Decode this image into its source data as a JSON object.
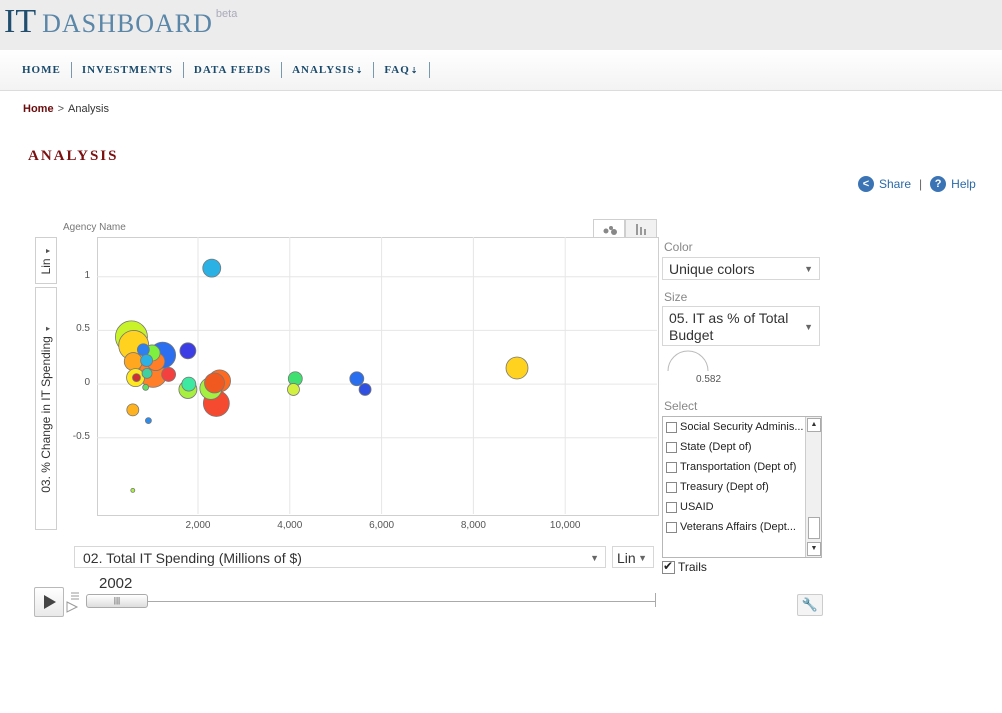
{
  "site": {
    "logo_it": "IT",
    "logo_dashboard": "DASHBOARD",
    "logo_beta": "beta"
  },
  "nav": [
    {
      "label": "HOME",
      "has_dropdown": false
    },
    {
      "label": "INVESTMENTS",
      "has_dropdown": false
    },
    {
      "label": "DATA FEEDS",
      "has_dropdown": false
    },
    {
      "label": "ANALYSIS",
      "has_dropdown": true
    },
    {
      "label": "FAQ",
      "has_dropdown": true
    }
  ],
  "breadcrumb": {
    "home": "Home",
    "separator": ">",
    "current": "Analysis"
  },
  "page_title": "ANALYSIS",
  "actions": {
    "share": "Share",
    "separator": "|",
    "help": "Help"
  },
  "chart": {
    "agency_label": "Agency Name",
    "y_scale": "Lin",
    "y_metric": "03. % Change in IT Spending",
    "x_metric": "02. Total IT Spending (Millions of $)",
    "x_scale": "Lin",
    "year": "2002"
  },
  "panel": {
    "color_label": "Color",
    "color_value": "Unique colors",
    "size_label": "Size",
    "size_value": "05. IT as % of Total Budget",
    "gauge_value": "0.582",
    "select_label": "Select",
    "select_items": [
      "Social Security Adminis...",
      "State (Dept of)",
      "Transportation (Dept of)",
      "Treasury (Dept of)",
      "USAID",
      "Veterans Affairs (Dept..."
    ],
    "trails_label": "Trails"
  },
  "chart_data": {
    "type": "scatter",
    "title": "",
    "xlabel": "02. Total IT Spending (Millions of $)",
    "ylabel": "03. % Change in IT Spending",
    "x_ticks": [
      "2,000",
      "4,000",
      "6,000",
      "8,000",
      "10,000"
    ],
    "y_ticks": [
      "1",
      "0.5",
      "0",
      "-0.5"
    ],
    "xlim": [
      0,
      12000
    ],
    "ylim": [
      -1.2,
      1.4
    ],
    "grid": true,
    "points": [
      {
        "x": 2300,
        "y": 1.08,
        "size": 9,
        "color": "#2bb1e3"
      },
      {
        "x": 8950,
        "y": 0.15,
        "size": 11,
        "color": "#ffd21f"
      },
      {
        "x": 550,
        "y": 0.44,
        "size": 16,
        "color": "#c8f22a"
      },
      {
        "x": 600,
        "y": 0.36,
        "size": 15,
        "color": "#ffd21f"
      },
      {
        "x": 1230,
        "y": 0.27,
        "size": 13,
        "color": "#2b6ff0"
      },
      {
        "x": 1780,
        "y": 0.31,
        "size": 8,
        "color": "#3d3de6"
      },
      {
        "x": 810,
        "y": 0.32,
        "size": 6,
        "color": "#2e7ff0"
      },
      {
        "x": 1000,
        "y": 0.29,
        "size": 8,
        "color": "#7df040"
      },
      {
        "x": 590,
        "y": 0.21,
        "size": 9,
        "color": "#ffa81f"
      },
      {
        "x": 880,
        "y": 0.22,
        "size": 6,
        "color": "#2bb1e3"
      },
      {
        "x": 1080,
        "y": 0.21,
        "size": 9,
        "color": "#ff7e27"
      },
      {
        "x": 1020,
        "y": 0.1,
        "size": 14,
        "color": "#ff7e27"
      },
      {
        "x": 1360,
        "y": 0.09,
        "size": 7,
        "color": "#f54040"
      },
      {
        "x": 640,
        "y": 0.06,
        "size": 9,
        "color": "#ffe81f"
      },
      {
        "x": 660,
        "y": 0.06,
        "size": 4,
        "color": "#d03030"
      },
      {
        "x": 890,
        "y": 0.1,
        "size": 5,
        "color": "#40d0a0"
      },
      {
        "x": 860,
        "y": -0.03,
        "size": 3,
        "color": "#60e060"
      },
      {
        "x": 1800,
        "y": 0.0,
        "size": 7,
        "color": "#3de8a0"
      },
      {
        "x": 1780,
        "y": -0.05,
        "size": 9,
        "color": "#a8f040"
      },
      {
        "x": 2360,
        "y": 0.01,
        "size": 10,
        "color": "#f05a20"
      },
      {
        "x": 2470,
        "y": 0.03,
        "size": 11,
        "color": "#ff6a20"
      },
      {
        "x": 2280,
        "y": -0.04,
        "size": 11,
        "color": "#a4f040"
      },
      {
        "x": 2400,
        "y": -0.18,
        "size": 13,
        "color": "#f54a30"
      },
      {
        "x": 4120,
        "y": 0.05,
        "size": 7,
        "color": "#40e070"
      },
      {
        "x": 4080,
        "y": -0.05,
        "size": 6,
        "color": "#d2f040"
      },
      {
        "x": 5460,
        "y": 0.05,
        "size": 7,
        "color": "#2a6ef0"
      },
      {
        "x": 5640,
        "y": -0.05,
        "size": 6,
        "color": "#2f50e0"
      },
      {
        "x": 580,
        "y": -0.24,
        "size": 6,
        "color": "#ffb21f"
      },
      {
        "x": 920,
        "y": -0.34,
        "size": 3,
        "color": "#2a8ef0"
      },
      {
        "x": 580,
        "y": -0.99,
        "size": 2,
        "color": "#a8f040"
      }
    ]
  }
}
